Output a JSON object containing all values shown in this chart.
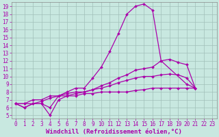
{
  "xlabel": "Windchill (Refroidissement éolien,°C)",
  "background_color": "#c8e8e0",
  "grid_color": "#a0bfb8",
  "line_color": "#aa00aa",
  "xlim": [
    -0.5,
    23.5
  ],
  "ylim": [
    4.6,
    19.5
  ],
  "xtick_vals": [
    0,
    1,
    2,
    3,
    4,
    5,
    6,
    7,
    8,
    9,
    10,
    11,
    12,
    13,
    14,
    15,
    16,
    17,
    18,
    19,
    20,
    21,
    22,
    23
  ],
  "ytick_vals": [
    5,
    6,
    7,
    8,
    9,
    10,
    11,
    12,
    13,
    14,
    15,
    16,
    17,
    18,
    19
  ],
  "series": [
    {
      "x": [
        0,
        1,
        2,
        3,
        4,
        5,
        6,
        7,
        8,
        9,
        10,
        11,
        12,
        13,
        14,
        15,
        16,
        17,
        20,
        21
      ],
      "y": [
        6.5,
        6.0,
        6.5,
        6.5,
        6.0,
        7.5,
        8.0,
        8.5,
        8.5,
        9.8,
        11.2,
        13.2,
        15.5,
        18.0,
        19.0,
        19.3,
        18.5,
        12.0,
        9.0,
        8.5
      ]
    },
    {
      "x": [
        0,
        1,
        2,
        3,
        4,
        5,
        6,
        7,
        8,
        9,
        10,
        11,
        12,
        13,
        14,
        15,
        16,
        17,
        18,
        19,
        20,
        21
      ],
      "y": [
        6.5,
        6.0,
        6.5,
        6.5,
        5.0,
        7.0,
        7.5,
        7.8,
        8.0,
        8.3,
        8.8,
        9.2,
        9.8,
        10.2,
        10.8,
        11.0,
        11.2,
        12.0,
        12.2,
        11.8,
        11.5,
        8.5
      ]
    },
    {
      "x": [
        0,
        1,
        2,
        3,
        4,
        5,
        6,
        7,
        8,
        9,
        10,
        11,
        12,
        13,
        14,
        15,
        16,
        17,
        18,
        19,
        20,
        21
      ],
      "y": [
        6.5,
        6.5,
        6.5,
        6.8,
        7.2,
        7.5,
        7.8,
        8.0,
        8.0,
        8.3,
        8.5,
        8.8,
        9.2,
        9.5,
        9.8,
        10.0,
        10.0,
        10.2,
        10.3,
        10.2,
        9.8,
        8.5
      ]
    },
    {
      "x": [
        0,
        1,
        2,
        3,
        4,
        5,
        6,
        7,
        8,
        9,
        10,
        11,
        12,
        13,
        14,
        15,
        16,
        17,
        18,
        19,
        20,
        21
      ],
      "y": [
        6.5,
        6.5,
        7.0,
        7.0,
        7.5,
        7.5,
        7.5,
        7.5,
        7.8,
        7.8,
        8.0,
        8.0,
        8.0,
        8.0,
        8.2,
        8.3,
        8.5,
        8.5,
        8.5,
        8.5,
        8.5,
        8.5
      ]
    }
  ],
  "marker": "D",
  "marker_size": 2.0,
  "line_width": 0.9,
  "font_size": 6.5,
  "tick_label_size": 5.5
}
